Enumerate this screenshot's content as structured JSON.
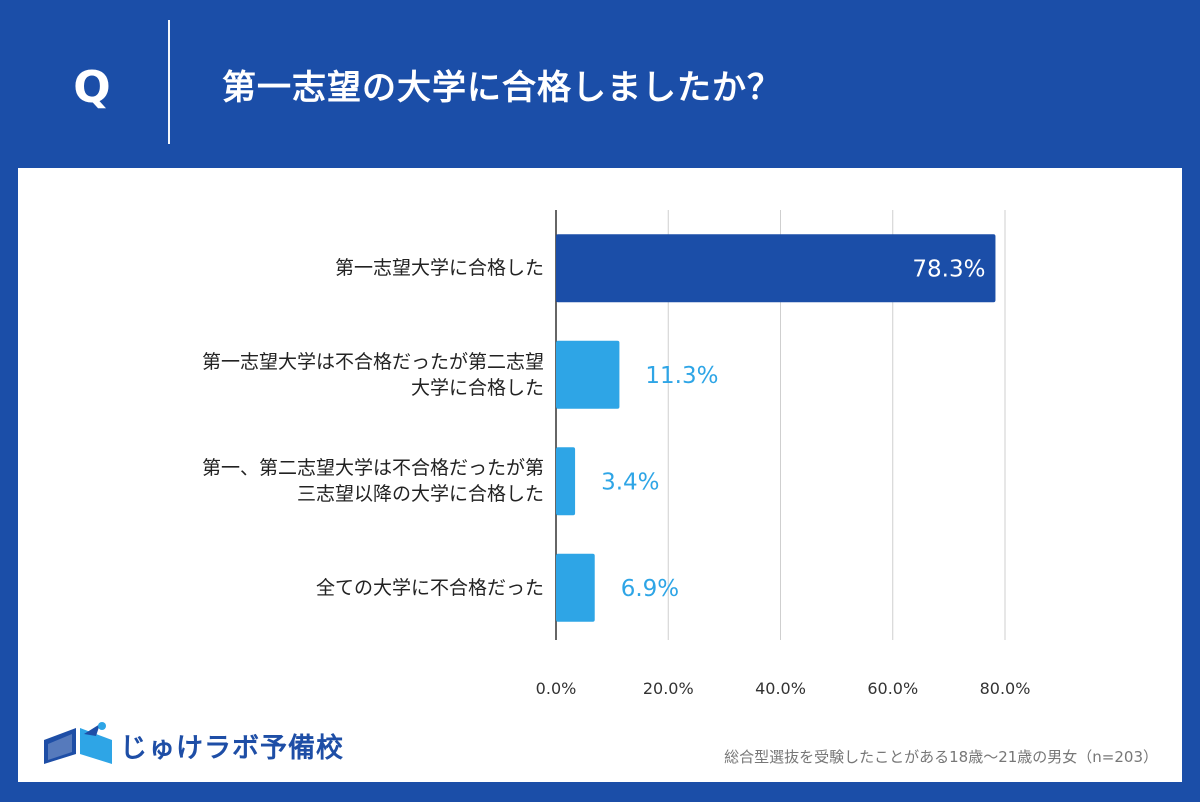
{
  "header": {
    "q_label": "Q",
    "title": "第一志望の大学に合格しましたか？"
  },
  "chart_data": {
    "type": "bar",
    "orientation": "horizontal",
    "categories": [
      [
        "第一志望大学に合格した"
      ],
      [
        "第一志望大学は不合格だったが第二志望",
        "大学に合格した"
      ],
      [
        "第一、第二志望大学は不合格だったが第",
        "三志望以降の大学に合格した"
      ],
      [
        "全ての大学に不合格だった"
      ]
    ],
    "values": [
      78.3,
      11.3,
      3.4,
      6.9
    ],
    "value_labels": [
      "78.3%",
      "11.3%",
      "3.4%",
      "6.9%"
    ],
    "xlim": [
      0,
      80
    ],
    "xticks": [
      "0.0%",
      "20.0%",
      "40.0%",
      "60.0%",
      "80.0%"
    ],
    "grid": true,
    "colors": {
      "highlight": "#1b4ea8",
      "normal": "#2ea5e6",
      "grid": "#cfcfcf",
      "axis": "#333333"
    }
  },
  "footer": {
    "note": "総合型選抜を受験したことがある18歳〜21歳の男女（n=203）",
    "logo_text": "じゅけラボ予備校",
    "logo_icon": "book-icon"
  }
}
